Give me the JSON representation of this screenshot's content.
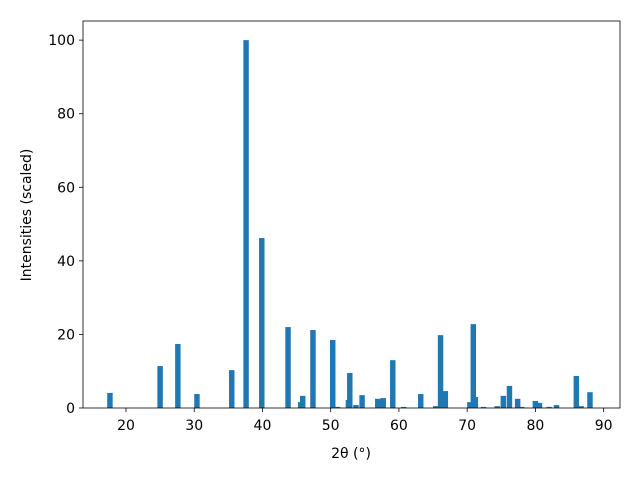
{
  "chart_data": {
    "type": "bar",
    "x_label": "2θ (°)",
    "y_label": "Intensities (scaled)",
    "x": [
      17.65,
      25.0,
      27.6,
      30.4,
      35.5,
      37.6,
      39.9,
      43.75,
      45.6,
      45.9,
      47.4,
      50.3,
      51.0,
      52.6,
      52.8,
      53.7,
      54.6,
      56.9,
      57.7,
      59.1,
      60.7,
      63.2,
      65.4,
      66.1,
      66.8,
      70.4,
      70.9,
      71.2,
      72.4,
      74.4,
      75.3,
      76.2,
      77.4,
      78.0,
      80.0,
      80.6,
      82.0,
      83.1,
      86.0,
      86.7,
      88.0
    ],
    "values": [
      4.1,
      11.4,
      17.4,
      3.8,
      10.3,
      100,
      46.2,
      22,
      1.6,
      3.3,
      21.2,
      18.5,
      0.3,
      2.2,
      9.5,
      0.8,
      3.5,
      2.5,
      2.7,
      13.0,
      0.3,
      3.8,
      0.5,
      19.8,
      4.6,
      1.6,
      22.8,
      3.0,
      0.3,
      0.5,
      3.3,
      6.0,
      2.5,
      0.3,
      1.9,
      1.4,
      0.3,
      0.8,
      8.7,
      0.5,
      4.3
    ],
    "color": "#1f77b4",
    "xlim": [
      13.7,
      92.4
    ],
    "xticks": [
      20,
      30,
      40,
      50,
      60,
      70,
      80,
      90
    ],
    "ylim": [
      0,
      105.2
    ],
    "yticks": [
      0,
      20,
      40,
      60,
      80,
      100
    ]
  }
}
